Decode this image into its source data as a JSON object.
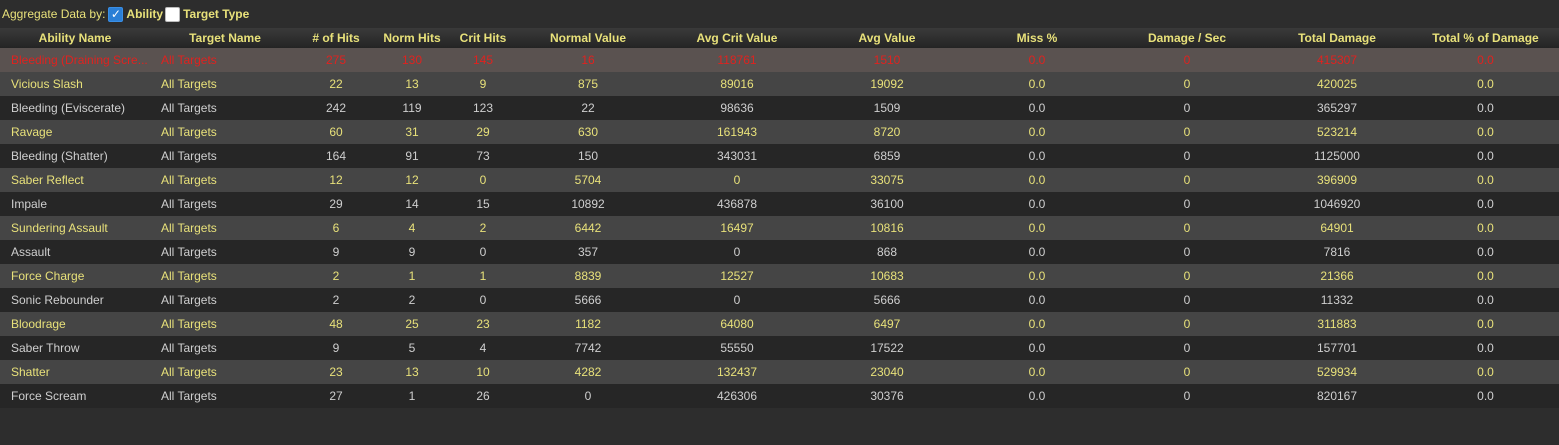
{
  "toolbar": {
    "aggregate_label": "Aggregate Data by:",
    "ability_label": "Ability",
    "target_type_label": "Target Type",
    "ability_checked": true,
    "target_type_checked": false
  },
  "table": {
    "columns": [
      "Ability Name",
      "Target Name",
      "# of Hits",
      "Norm Hits",
      "Crit Hits",
      "Normal Value",
      "Avg Crit Value",
      "Avg Value",
      "Miss %",
      "Damage / Sec",
      "Total Damage",
      "Total % of Damage"
    ],
    "rows": [
      [
        "Bleeding (Draining Scre...",
        "All Targets",
        "275",
        "130",
        "145",
        "16",
        "118761",
        "1510",
        "0.0",
        "0",
        "415307",
        "0.0"
      ],
      [
        "Vicious Slash",
        "All Targets",
        "22",
        "13",
        "9",
        "875",
        "89016",
        "19092",
        "0.0",
        "0",
        "420025",
        "0.0"
      ],
      [
        "Bleeding (Eviscerate)",
        "All Targets",
        "242",
        "119",
        "123",
        "22",
        "98636",
        "1509",
        "0.0",
        "0",
        "365297",
        "0.0"
      ],
      [
        "Ravage",
        "All Targets",
        "60",
        "31",
        "29",
        "630",
        "161943",
        "8720",
        "0.0",
        "0",
        "523214",
        "0.0"
      ],
      [
        "Bleeding (Shatter)",
        "All Targets",
        "164",
        "91",
        "73",
        "150",
        "343031",
        "6859",
        "0.0",
        "0",
        "1125000",
        "0.0"
      ],
      [
        "Saber Reflect",
        "All Targets",
        "12",
        "12",
        "0",
        "5704",
        "0",
        "33075",
        "0.0",
        "0",
        "396909",
        "0.0"
      ],
      [
        "Impale",
        "All Targets",
        "29",
        "14",
        "15",
        "10892",
        "436878",
        "36100",
        "0.0",
        "0",
        "1046920",
        "0.0"
      ],
      [
        "Sundering Assault",
        "All Targets",
        "6",
        "4",
        "2",
        "6442",
        "16497",
        "10816",
        "0.0",
        "0",
        "64901",
        "0.0"
      ],
      [
        "Assault",
        "All Targets",
        "9",
        "9",
        "0",
        "357",
        "0",
        "868",
        "0.0",
        "0",
        "7816",
        "0.0"
      ],
      [
        "Force Charge",
        "All Targets",
        "2",
        "1",
        "1",
        "8839",
        "12527",
        "10683",
        "0.0",
        "0",
        "21366",
        "0.0"
      ],
      [
        "Sonic Rebounder",
        "All Targets",
        "2",
        "2",
        "0",
        "5666",
        "0",
        "5666",
        "0.0",
        "0",
        "11332",
        "0.0"
      ],
      [
        "Bloodrage",
        "All Targets",
        "48",
        "25",
        "23",
        "1182",
        "64080",
        "6497",
        "0.0",
        "0",
        "311883",
        "0.0"
      ],
      [
        "Saber Throw",
        "All Targets",
        "9",
        "5",
        "4",
        "7742",
        "55550",
        "17522",
        "0.0",
        "0",
        "157701",
        "0.0"
      ],
      [
        "Shatter",
        "All Targets",
        "23",
        "13",
        "10",
        "4282",
        "132437",
        "23040",
        "0.0",
        "0",
        "529934",
        "0.0"
      ],
      [
        "Force Scream",
        "All Targets",
        "27",
        "1",
        "26",
        "0",
        "426306",
        "30376",
        "0.0",
        "0",
        "820167",
        "0.0"
      ]
    ],
    "selected_row": 0
  },
  "colors": {
    "accent_text": "#e8e17a",
    "selected_text": "#e0221f",
    "checkbox_checked": "#2b7fd6"
  }
}
